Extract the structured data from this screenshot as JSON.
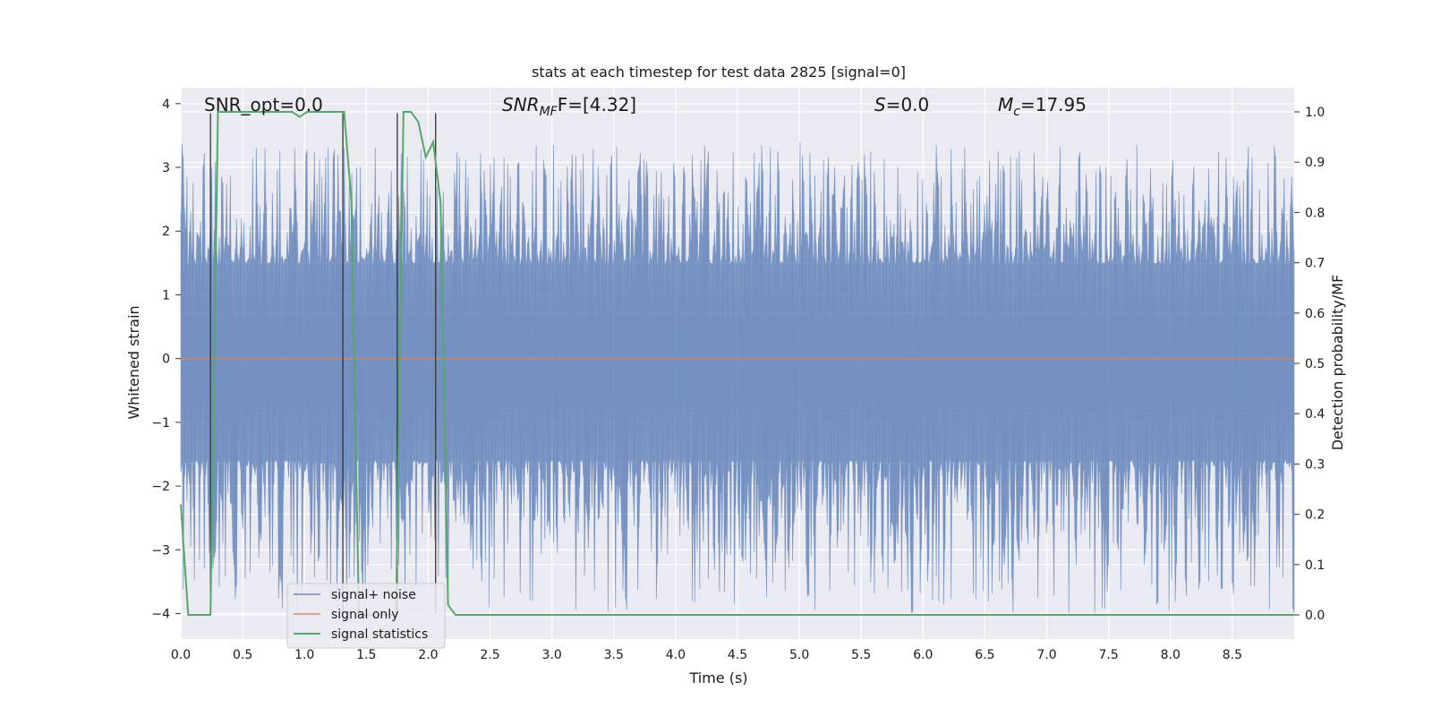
{
  "colors": {
    "background": "#ffffff",
    "plot_bg": "#eaeaf2",
    "grid": "#ffffff",
    "noise": "#4c72b0",
    "signal": "#dd8452",
    "stats": "#55a868",
    "vlines": "#333333"
  },
  "chart_data": {
    "type": "line",
    "title": "stats at each timestep for test data 2825 [signal=0]",
    "xlabel": "Time (s)",
    "ylabel": "Whitened strain",
    "y2label": "Detection probability/MF",
    "xlim": [
      0,
      9.0
    ],
    "ylim": [
      -4.4,
      4.25
    ],
    "y2lim": [
      -0.048,
      1.048
    ],
    "xticks": [
      "0.0",
      "0.5",
      "1.0",
      "1.5",
      "2.0",
      "2.5",
      "3.0",
      "3.5",
      "4.0",
      "4.5",
      "5.0",
      "5.5",
      "6.0",
      "6.5",
      "7.0",
      "7.5",
      "8.0",
      "8.5"
    ],
    "yticks": [
      "4",
      "3",
      "2",
      "1",
      "0",
      "−1",
      "−2",
      "−3",
      "−4"
    ],
    "y2ticks": [
      "1.0",
      "0.9",
      "0.8",
      "0.7",
      "0.6",
      "0.5",
      "0.4",
      "0.3",
      "0.2",
      "0.1",
      "0.0"
    ],
    "annotations": {
      "snr_opt": "SNR_opt=0.0",
      "snr_mf_main": "SNR",
      "snr_mf_sub": "MF",
      "snr_mf_suffix": "F=[4.32]",
      "s_main": "S",
      "s_value": "=0.0",
      "mc_main": "M",
      "mc_sub": "c",
      "mc_value": "=17.95"
    },
    "legend": {
      "placement": "lower-left",
      "entries": [
        "signal+ noise",
        "signal only",
        "signal statistics"
      ]
    },
    "noise_envelope": {
      "description_free": true,
      "upper_range": [
        1.5,
        3.4
      ],
      "lower_range": [
        -4.0,
        -1.6
      ],
      "samples": 900
    },
    "series": [
      {
        "name": "signal only",
        "x": [
          0,
          9.0
        ],
        "y": [
          0,
          0
        ]
      },
      {
        "name": "signal statistics",
        "axis": "right",
        "x": [
          0.0,
          0.06,
          0.12,
          0.18,
          0.24,
          0.3,
          0.36,
          0.42,
          0.48,
          0.54,
          0.6,
          0.66,
          0.72,
          0.78,
          0.84,
          0.9,
          0.96,
          1.02,
          1.08,
          1.14,
          1.2,
          1.26,
          1.32,
          1.38,
          1.44,
          1.5,
          1.56,
          1.62,
          1.68,
          1.74,
          1.8,
          1.86,
          1.92,
          1.98,
          2.04,
          2.1,
          2.16,
          2.22,
          2.28,
          2.34,
          2.4,
          9.0
        ],
        "y": [
          0.22,
          0.0,
          0.0,
          0.0,
          0.0,
          1.0,
          1.0,
          1.0,
          1.0,
          1.0,
          1.0,
          1.0,
          1.0,
          1.0,
          1.0,
          1.0,
          0.99,
          1.0,
          1.0,
          1.0,
          1.0,
          1.0,
          1.0,
          0.82,
          0.0,
          0.0,
          0.0,
          0.0,
          0.0,
          0.0,
          1.0,
          1.0,
          0.98,
          0.91,
          0.94,
          0.82,
          0.02,
          0.0,
          0.0,
          0.0,
          0.0,
          0.0
        ]
      }
    ],
    "vlines": [
      0.24,
      1.31,
      1.75,
      2.06
    ]
  }
}
